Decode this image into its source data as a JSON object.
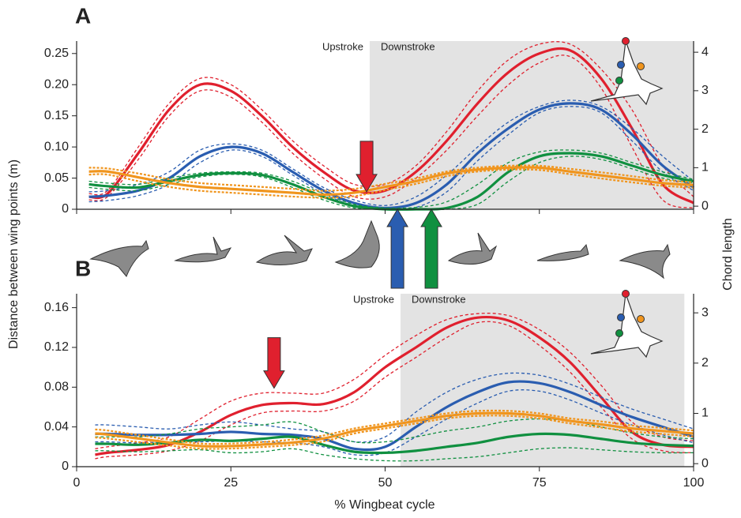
{
  "figure": {
    "y_label": "Distance between wing points (m)",
    "y2_label": "Chord length",
    "x_label": "% Wingbeat cycle"
  },
  "chart_data": [
    {
      "type": "line",
      "panel_label": "A",
      "upstroke_label": "Upstroke",
      "downstroke_label": "Downstroke",
      "shade_x": [
        47.5,
        100
      ],
      "xlim": [
        0,
        100
      ],
      "xticks": [
        0,
        25,
        50,
        75,
        100
      ],
      "xtick_labels": false,
      "ylim": [
        0,
        0.27
      ],
      "yticks": [
        0,
        0.05,
        {
          "value": 0.1,
          "label": "0.10"
        },
        0.15,
        {
          "value": 0.2,
          "label": "0.20"
        },
        0.25
      ],
      "y2lim": [
        -0.08,
        4.29
      ],
      "y2ticks": [
        0,
        1,
        2,
        3,
        4
      ],
      "x": [
        2,
        5,
        10,
        15,
        20,
        25,
        30,
        35,
        40,
        45,
        50,
        55,
        60,
        65,
        70,
        75,
        80,
        85,
        90,
        95,
        100
      ],
      "series": [
        {
          "color": "#e0202e",
          "values": [
            0.02,
            0.025,
            0.09,
            0.16,
            0.2,
            0.19,
            0.15,
            0.1,
            0.06,
            0.03,
            0.03,
            0.06,
            0.11,
            0.17,
            0.22,
            0.25,
            0.255,
            0.21,
            0.13,
            0.04,
            0.01
          ],
          "upper": [
            0.025,
            0.03,
            0.1,
            0.17,
            0.21,
            0.2,
            0.16,
            0.11,
            0.07,
            0.04,
            0.04,
            0.07,
            0.125,
            0.19,
            0.24,
            0.265,
            0.265,
            0.225,
            0.16,
            0.07,
            0.02
          ],
          "lower": [
            0.015,
            0.02,
            0.08,
            0.15,
            0.19,
            0.18,
            0.14,
            0.09,
            0.05,
            0.02,
            0.02,
            0.05,
            0.095,
            0.15,
            0.2,
            0.235,
            0.245,
            0.195,
            0.1,
            0.015,
            0.002
          ]
        },
        {
          "color": "#2a5db0",
          "values": [
            0.02,
            0.022,
            0.03,
            0.05,
            0.085,
            0.1,
            0.09,
            0.06,
            0.03,
            0.01,
            0.002,
            0.01,
            0.04,
            0.09,
            0.13,
            0.16,
            0.17,
            0.16,
            0.12,
            0.07,
            0.035
          ],
          "upper": [
            0.028,
            0.03,
            0.04,
            0.06,
            0.095,
            0.105,
            0.095,
            0.065,
            0.035,
            0.015,
            0.006,
            0.02,
            0.055,
            0.1,
            0.14,
            0.165,
            0.175,
            0.165,
            0.13,
            0.085,
            0.045
          ],
          "lower": [
            0.012,
            0.014,
            0.022,
            0.04,
            0.075,
            0.095,
            0.085,
            0.055,
            0.025,
            0.006,
            0,
            0.003,
            0.028,
            0.078,
            0.12,
            0.155,
            0.165,
            0.155,
            0.11,
            0.06,
            0.03
          ]
        },
        {
          "color": "#109040",
          "values": [
            0.04,
            0.037,
            0.035,
            0.045,
            0.055,
            0.058,
            0.055,
            0.04,
            0.02,
            0.005,
            0,
            0,
            0.002,
            0.02,
            0.06,
            0.085,
            0.09,
            0.085,
            0.07,
            0.055,
            0.045
          ],
          "upper": [
            0.045,
            0.042,
            0.04,
            0.05,
            0.058,
            0.06,
            0.058,
            0.045,
            0.025,
            0.008,
            0.002,
            0.003,
            0.012,
            0.04,
            0.075,
            0.092,
            0.095,
            0.09,
            0.075,
            0.06,
            0.048
          ],
          "lower": [
            0.035,
            0.032,
            0.03,
            0.04,
            0.052,
            0.056,
            0.052,
            0.035,
            0.015,
            0.002,
            0,
            0,
            0,
            0.008,
            0.045,
            0.075,
            0.085,
            0.08,
            0.065,
            0.05,
            0.042
          ]
        },
        {
          "color": "#f0951e",
          "axis": "y2",
          "values": [
            0.9,
            0.9,
            0.75,
            0.6,
            0.5,
            0.45,
            0.4,
            0.35,
            0.3,
            0.35,
            0.5,
            0.65,
            0.85,
            0.95,
            1.0,
            1.0,
            0.9,
            0.8,
            0.7,
            0.6,
            0.55
          ],
          "upper": [
            1.0,
            0.98,
            0.85,
            0.7,
            0.6,
            0.55,
            0.5,
            0.45,
            0.4,
            0.45,
            0.58,
            0.72,
            0.9,
            1.0,
            1.05,
            1.05,
            0.97,
            0.88,
            0.78,
            0.68,
            0.62
          ],
          "lower": [
            0.82,
            0.82,
            0.65,
            0.5,
            0.4,
            0.35,
            0.3,
            0.25,
            0.22,
            0.26,
            0.42,
            0.58,
            0.78,
            0.9,
            0.95,
            0.94,
            0.83,
            0.72,
            0.62,
            0.53,
            0.48
          ]
        }
      ],
      "arrows": [
        {
          "x": 47,
          "y": 0.028,
          "color": "#e0202e",
          "direction": "down"
        },
        {
          "x": 52,
          "y": 0,
          "color": "#2a5db0",
          "direction": "up"
        },
        {
          "x": 57.5,
          "y": 0,
          "color": "#109040",
          "direction": "up"
        }
      ]
    },
    {
      "type": "line",
      "panel_label": "B",
      "upstroke_label": "Upstroke",
      "downstroke_label": "Downstroke",
      "shade_x": [
        52.5,
        98.5
      ],
      "xlim": [
        0,
        100
      ],
      "xticks": [
        0,
        25,
        50,
        75,
        100
      ],
      "xtick_labels": true,
      "ylim": [
        0,
        0.174
      ],
      "yticks": [
        0,
        0.04,
        0.08,
        0.12,
        0.16
      ],
      "y2lim": [
        -0.06,
        3.38
      ],
      "y2ticks": [
        0,
        1,
        2,
        3
      ],
      "x": [
        3,
        5,
        10,
        15,
        20,
        25,
        30,
        35,
        40,
        45,
        50,
        55,
        60,
        65,
        70,
        75,
        80,
        85,
        90,
        95,
        100
      ],
      "series": [
        {
          "color": "#e0202e",
          "values": [
            0.012,
            0.014,
            0.017,
            0.022,
            0.035,
            0.052,
            0.062,
            0.064,
            0.063,
            0.075,
            0.1,
            0.12,
            0.14,
            0.15,
            0.147,
            0.13,
            0.105,
            0.07,
            0.035,
            0.022,
            0.02
          ],
          "upper": [
            0.018,
            0.02,
            0.024,
            0.03,
            0.048,
            0.066,
            0.074,
            0.074,
            0.074,
            0.088,
            0.112,
            0.132,
            0.148,
            0.154,
            0.152,
            0.138,
            0.115,
            0.082,
            0.045,
            0.03,
            0.026
          ],
          "lower": [
            0.008,
            0.01,
            0.012,
            0.016,
            0.026,
            0.042,
            0.054,
            0.056,
            0.056,
            0.066,
            0.09,
            0.11,
            0.13,
            0.145,
            0.142,
            0.122,
            0.095,
            0.06,
            0.028,
            0.016,
            0.014
          ]
        },
        {
          "color": "#2a5db0",
          "values": [
            0.033,
            0.033,
            0.032,
            0.032,
            0.033,
            0.035,
            0.033,
            0.032,
            0.028,
            0.018,
            0.02,
            0.04,
            0.06,
            0.075,
            0.085,
            0.084,
            0.075,
            0.062,
            0.05,
            0.04,
            0.03
          ],
          "upper": [
            0.042,
            0.042,
            0.04,
            0.038,
            0.042,
            0.045,
            0.042,
            0.038,
            0.035,
            0.025,
            0.03,
            0.055,
            0.075,
            0.088,
            0.094,
            0.092,
            0.083,
            0.07,
            0.058,
            0.048,
            0.038
          ],
          "lower": [
            0.025,
            0.025,
            0.024,
            0.025,
            0.025,
            0.026,
            0.025,
            0.024,
            0.02,
            0.012,
            0.014,
            0.03,
            0.048,
            0.064,
            0.076,
            0.076,
            0.067,
            0.054,
            0.042,
            0.032,
            0.024
          ]
        },
        {
          "color": "#109040",
          "values": [
            0.023,
            0.023,
            0.022,
            0.024,
            0.027,
            0.026,
            0.028,
            0.03,
            0.022,
            0.015,
            0.014,
            0.016,
            0.02,
            0.024,
            0.03,
            0.033,
            0.032,
            0.028,
            0.024,
            0.022,
            0.021
          ],
          "upper": [
            0.03,
            0.03,
            0.03,
            0.033,
            0.038,
            0.04,
            0.042,
            0.045,
            0.035,
            0.025,
            0.025,
            0.03,
            0.036,
            0.04,
            0.046,
            0.048,
            0.046,
            0.04,
            0.034,
            0.03,
            0.028
          ],
          "lower": [
            0.016,
            0.016,
            0.015,
            0.016,
            0.017,
            0.014,
            0.015,
            0.018,
            0.012,
            0.008,
            0.006,
            0.006,
            0.008,
            0.01,
            0.014,
            0.018,
            0.019,
            0.017,
            0.015,
            0.014,
            0.014
          ]
        },
        {
          "color": "#f0951e",
          "axis": "y2",
          "values": [
            0.6,
            0.58,
            0.5,
            0.42,
            0.35,
            0.35,
            0.38,
            0.42,
            0.5,
            0.65,
            0.75,
            0.85,
            0.95,
            1.0,
            1.0,
            0.95,
            0.85,
            0.78,
            0.7,
            0.65,
            0.6
          ],
          "upper": [
            0.68,
            0.66,
            0.57,
            0.48,
            0.4,
            0.4,
            0.43,
            0.48,
            0.56,
            0.7,
            0.8,
            0.9,
            1.0,
            1.05,
            1.05,
            1.0,
            0.9,
            0.84,
            0.76,
            0.71,
            0.66
          ],
          "lower": [
            0.52,
            0.5,
            0.43,
            0.36,
            0.3,
            0.3,
            0.33,
            0.37,
            0.44,
            0.6,
            0.7,
            0.8,
            0.9,
            0.95,
            0.95,
            0.9,
            0.8,
            0.72,
            0.64,
            0.59,
            0.54
          ]
        }
      ],
      "arrows": [
        {
          "x": 32,
          "y": 0.079,
          "color": "#e0202e",
          "direction": "down"
        }
      ]
    }
  ]
}
